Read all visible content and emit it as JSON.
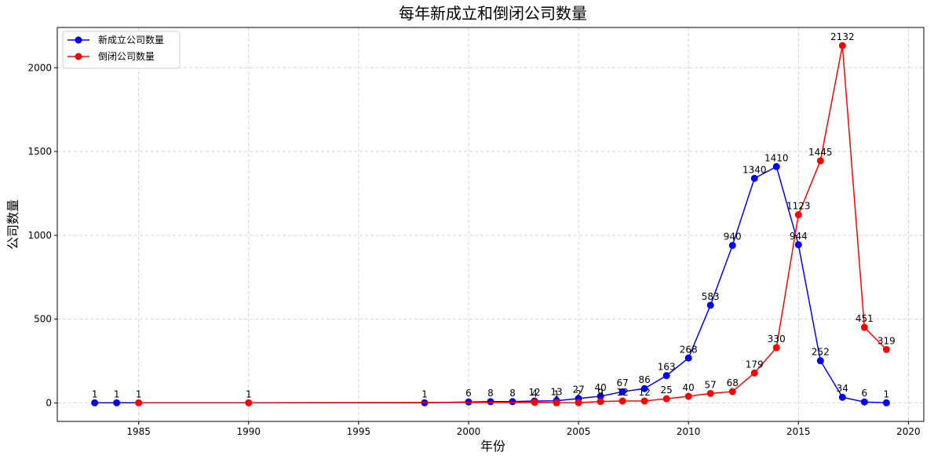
{
  "chart_data": {
    "type": "line",
    "title": "每年新成立和倒闭公司数量",
    "xlabel": "年份",
    "ylabel": "公司数量",
    "xlim": [
      1981.3,
      2020.7
    ],
    "ylim": [
      -110,
      2240
    ],
    "xticks": [
      1985,
      1990,
      1995,
      2000,
      2005,
      2010,
      2015,
      2020
    ],
    "yticks": [
      0,
      500,
      1000,
      1500,
      2000
    ],
    "grid": true,
    "legend_position": "top-left",
    "series": [
      {
        "name": "新成立公司数量",
        "color": "#0000ff",
        "points": [
          {
            "x": 1983,
            "y": 1
          },
          {
            "x": 1984,
            "y": 1
          },
          {
            "x": 1998,
            "y": 1
          },
          {
            "x": 2000,
            "y": 6
          },
          {
            "x": 2001,
            "y": 8
          },
          {
            "x": 2002,
            "y": 8
          },
          {
            "x": 2003,
            "y": 12
          },
          {
            "x": 2004,
            "y": 13
          },
          {
            "x": 2005,
            "y": 27
          },
          {
            "x": 2006,
            "y": 40
          },
          {
            "x": 2007,
            "y": 67
          },
          {
            "x": 2008,
            "y": 86
          },
          {
            "x": 2009,
            "y": 163
          },
          {
            "x": 2010,
            "y": 268
          },
          {
            "x": 2011,
            "y": 583
          },
          {
            "x": 2012,
            "y": 940
          },
          {
            "x": 2013,
            "y": 1340
          },
          {
            "x": 2014,
            "y": 1410
          },
          {
            "x": 2015,
            "y": 944
          },
          {
            "x": 2016,
            "y": 252
          },
          {
            "x": 2017,
            "y": 34
          },
          {
            "x": 2018,
            "y": 6
          },
          {
            "x": 2019,
            "y": 1
          }
        ]
      },
      {
        "name": "倒闭公司数量",
        "color": "#ff0000",
        "points": [
          {
            "x": 1985,
            "y": 1
          },
          {
            "x": 1990,
            "y": 1
          },
          {
            "x": 2003,
            "y": 4
          },
          {
            "x": 2004,
            "y": 1
          },
          {
            "x": 2005,
            "y": 2
          },
          {
            "x": 2006,
            "y": 9
          },
          {
            "x": 2007,
            "y": 12
          },
          {
            "x": 2008,
            "y": 12
          },
          {
            "x": 2009,
            "y": 25
          },
          {
            "x": 2010,
            "y": 40
          },
          {
            "x": 2011,
            "y": 57
          },
          {
            "x": 2012,
            "y": 68
          },
          {
            "x": 2013,
            "y": 179
          },
          {
            "x": 2014,
            "y": 330
          },
          {
            "x": 2015,
            "y": 1123
          },
          {
            "x": 2016,
            "y": 1445
          },
          {
            "x": 2017,
            "y": 2132
          },
          {
            "x": 2018,
            "y": 451
          },
          {
            "x": 2019,
            "y": 319
          }
        ]
      }
    ]
  }
}
